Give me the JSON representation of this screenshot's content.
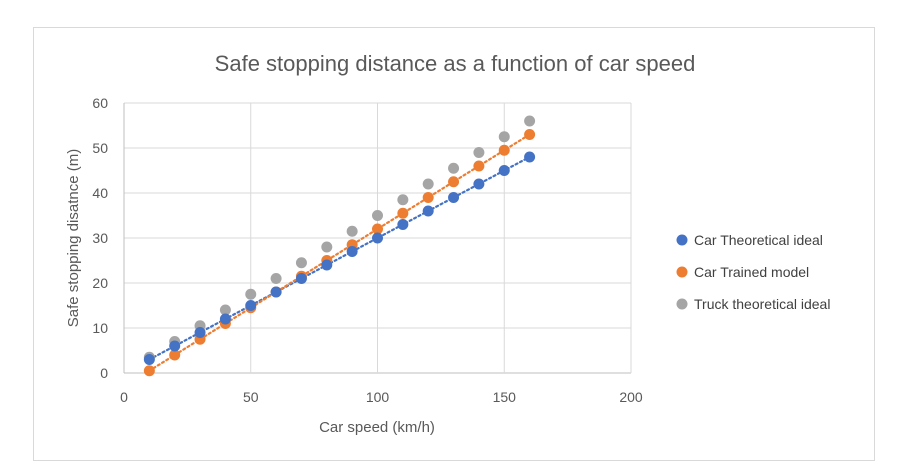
{
  "chart_data": {
    "type": "scatter",
    "title": "Safe stopping distance as a function of car speed",
    "xlabel": "Car speed (km/h)",
    "ylabel": "Safe stopping disatnce (m)",
    "xlim": [
      0,
      200
    ],
    "ylim": [
      0,
      60
    ],
    "xticks": [
      0,
      50,
      100,
      150,
      200
    ],
    "yticks": [
      0,
      10,
      20,
      30,
      40,
      50,
      60
    ],
    "grid": true,
    "legend_position": "right",
    "x": [
      10,
      20,
      30,
      40,
      50,
      60,
      70,
      80,
      90,
      100,
      110,
      120,
      130,
      140,
      150,
      160
    ],
    "series": [
      {
        "name": "Car Theoretical ideal",
        "color": "#4472c4",
        "trendline": "linear",
        "values": [
          3,
          6,
          9,
          12,
          15,
          18,
          21,
          24,
          27,
          30,
          33,
          36,
          39,
          42,
          45,
          48
        ]
      },
      {
        "name": "Car Trained model",
        "color": "#ed7d31",
        "trendline": "linear",
        "values": [
          0.5,
          4,
          7.5,
          11,
          14.5,
          18,
          21.5,
          25,
          28.5,
          32,
          35.5,
          39,
          42.5,
          46,
          49.5,
          53
        ]
      },
      {
        "name": "Truck theoretical ideal",
        "color": "#a5a5a5",
        "trendline": "none",
        "values": [
          3.5,
          7,
          10.5,
          14,
          17.5,
          21,
          24.5,
          28,
          31.5,
          35,
          38.5,
          42,
          45.5,
          49,
          52.5,
          56
        ]
      }
    ]
  }
}
